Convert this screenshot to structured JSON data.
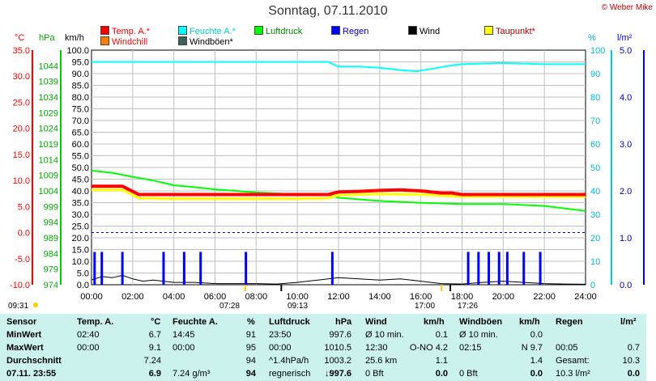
{
  "header": {
    "title": "Sonntag, 07.11.2010",
    "copyright": "© Weber Mike"
  },
  "legend": [
    {
      "label": "Temp. A.*",
      "color": "#ff0000"
    },
    {
      "label": "Feuchte A.*",
      "color": "#00ffff"
    },
    {
      "label": "Luftdruck",
      "color": "#00ff00"
    },
    {
      "label": "Regen",
      "color": "#0000ff"
    },
    {
      "label": "Wind",
      "color": "#000000"
    },
    {
      "label": "Taupunkt*",
      "color": "#ffff00"
    },
    {
      "label": "Windchill",
      "color": "#ff8000"
    },
    {
      "label": "Windböen*",
      "color": "#404040"
    }
  ],
  "axes": {
    "temp_unit": "°C",
    "press_unit": "hPa",
    "wind_unit": "km/h",
    "hum_unit": "%",
    "rain_unit": "l/m²",
    "temp_ticks": [
      "35.0",
      "30.0",
      "25.0",
      "20.0",
      "15.0",
      "10.0",
      "5.0",
      "0.0",
      "-5.0",
      "-10.0"
    ],
    "press_ticks": [
      "1044",
      "1039",
      "1034",
      "1029",
      "1024",
      "1019",
      "1014",
      "1009",
      "1004",
      "999",
      "994",
      "989",
      "984",
      "979",
      "974"
    ],
    "wind_ticks": [
      "100.0",
      "95.0",
      "90.0",
      "85.0",
      "80.0",
      "75.0",
      "70.0",
      "65.0",
      "60.0",
      "55.0",
      "50.0",
      "45.0",
      "40.0",
      "35.0",
      "30.0",
      "25.0",
      "20.0",
      "15.0",
      "10.0",
      "5.0",
      "0.0"
    ],
    "hum_ticks": [
      "100",
      "90",
      "80",
      "70",
      "60",
      "50",
      "40",
      "30",
      "20",
      "10",
      "0"
    ],
    "rain_ticks": [
      "5.0",
      "4.0",
      "3.0",
      "2.0",
      "1.0",
      "0.0"
    ],
    "time_ticks": [
      "00:00",
      "02:00",
      "04:00",
      "06:00",
      "08:00",
      "10:00",
      "12:00",
      "14:00",
      "16:00",
      "18:00",
      "20:00",
      "22:00",
      "24:00"
    ]
  },
  "sun_moon": {
    "sunrise": "07:28",
    "sunset": "17:00",
    "moonrise": "09:13",
    "moonset": "17:26",
    "left_time": "09:31"
  },
  "chart_data": {
    "type": "line",
    "title": "Sonntag, 07.11.2010",
    "x_unit": "hours",
    "xlim": [
      0,
      24
    ],
    "series": [
      {
        "name": "Temp. A.*",
        "axis": "°C",
        "ylim": [
          -10,
          35
        ],
        "x": [
          0,
          1.5,
          2.3,
          4,
          6,
          8,
          10,
          11.5,
          12,
          13,
          14,
          15,
          16,
          17,
          17.5,
          18,
          20,
          22,
          24
        ],
        "values": [
          8.9,
          8.9,
          7.3,
          7.3,
          7.3,
          7.3,
          7.3,
          7.3,
          7.8,
          7.9,
          8.1,
          8.2,
          8.0,
          7.6,
          7.6,
          7.3,
          7.3,
          7.3,
          7.3
        ]
      },
      {
        "name": "Taupunkt*",
        "axis": "°C",
        "ylim": [
          -10,
          35
        ],
        "x": [
          0,
          1.5,
          2.3,
          4,
          6,
          8,
          10,
          11.5,
          12,
          14,
          16,
          18,
          20,
          22,
          24
        ],
        "values": [
          8.2,
          8.2,
          6.6,
          6.5,
          6.5,
          6.5,
          6.5,
          6.6,
          7.2,
          7.4,
          7.3,
          6.9,
          6.9,
          6.9,
          6.9
        ]
      },
      {
        "name": "Feuchte A.*",
        "axis": "%",
        "ylim": [
          0,
          100
        ],
        "x": [
          0,
          4,
          8,
          10,
          11.5,
          12,
          13,
          14,
          15,
          15.8,
          16.5,
          17.5,
          18,
          20,
          22,
          24
        ],
        "values": [
          95,
          95,
          95,
          95,
          95,
          93,
          93,
          92.5,
          91.5,
          91,
          92,
          93.5,
          94,
          94.5,
          94,
          94
        ]
      },
      {
        "name": "Luftdruck",
        "axis": "hPa",
        "ylim": [
          974,
          1049
        ],
        "x": [
          0,
          1,
          2,
          3,
          4,
          5,
          6,
          8,
          10,
          11.5,
          12,
          14,
          16,
          18,
          20,
          22,
          24
        ],
        "values": [
          1010.5,
          1009.8,
          1008.5,
          1007.3,
          1005.8,
          1005.2,
          1004.5,
          1003.5,
          1002.9,
          1002.7,
          1001.8,
          1000.8,
          1000.2,
          999.8,
          999.8,
          999.2,
          997.6
        ]
      },
      {
        "name": "Regen",
        "axis": "l/m²",
        "ylim": [
          0,
          5
        ],
        "type": "bar",
        "x": [
          0.15,
          0.5,
          1.5,
          3.5,
          4.5,
          5.3,
          7.5,
          11.7,
          18.3,
          18.8,
          19.3,
          19.8,
          20.2,
          21.0,
          21.8
        ],
        "values": [
          0.7,
          0.7,
          0.7,
          0.7,
          0.7,
          0.7,
          0.7,
          0.7,
          0.7,
          0.7,
          0.7,
          0.7,
          0.7,
          0.7,
          0.7
        ]
      },
      {
        "name": "Wind",
        "axis": "km/h",
        "ylim": [
          0,
          100
        ],
        "x": [
          0,
          0.5,
          1,
          1.5,
          2,
          2.5,
          3,
          4,
          5,
          6,
          7,
          8,
          9,
          10,
          11,
          12,
          13,
          14,
          15,
          16,
          17,
          18,
          19,
          20,
          21,
          22,
          23,
          24
        ],
        "values": [
          2,
          3.5,
          3,
          4,
          2.5,
          1.5,
          2,
          1,
          1,
          0.5,
          0.5,
          0.5,
          0.3,
          1,
          2,
          3,
          2.5,
          2,
          2.5,
          1.5,
          0.5,
          0.3,
          1,
          1.5,
          1,
          0.5,
          0.3,
          0.2
        ]
      }
    ]
  },
  "table": {
    "headers": [
      "Sensor",
      "Temp. A.",
      "°C",
      "Feuchte A.",
      "%",
      "Luftdruck",
      "hPa",
      "Wind",
      "km/h",
      "Windböen",
      "km/h",
      "Regen",
      "l/m²"
    ],
    "rows": [
      {
        "label": "MinWert",
        "c": [
          "02:40",
          "6.7",
          "14:45",
          "91",
          "23:50",
          "997.6",
          "Ø 10 min.",
          "0.1",
          "Ø 10 min.",
          "0.0",
          "",
          ""
        ]
      },
      {
        "label": "MaxWert",
        "c": [
          "00:00",
          "9.1",
          "00:00",
          "95",
          "00:00",
          "1010.5",
          "12:30",
          "O-NO 4.2",
          "02:15",
          "N 9.7",
          "00:05",
          "0.7"
        ]
      },
      {
        "label": "Durchschnitt",
        "c": [
          "",
          "7.24",
          "",
          "94",
          "^1.4hPa/h",
          "1003.2",
          "25.6 km",
          "1.1",
          "",
          "1.4",
          "Gesamt:",
          "10.3"
        ]
      },
      {
        "label": "07.11. 23:55",
        "c": [
          "",
          "6.9",
          "7.24 g/m³",
          "94",
          "regnerisch",
          "↓997.6",
          "0 Bft",
          "0.0",
          "0 Bft",
          "0.0",
          "10.3 l/m²",
          "0.0"
        ]
      }
    ]
  }
}
